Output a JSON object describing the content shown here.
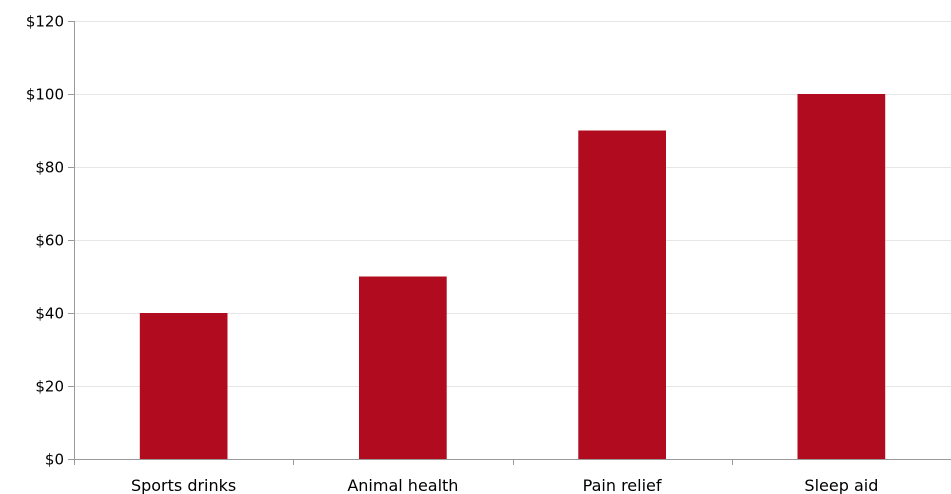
{
  "chart_data": {
    "type": "bar",
    "title": "",
    "xlabel": "",
    "ylabel": "",
    "categories": [
      "Sports drinks",
      "Animal health",
      "Pain relief",
      "Sleep aid"
    ],
    "values": [
      40,
      50,
      90,
      100
    ],
    "ylim": [
      0,
      120
    ],
    "ytick_step": 20,
    "ytick_prefix": "$",
    "grid": true,
    "legend": "none",
    "bar_color": "#b00b1e"
  }
}
